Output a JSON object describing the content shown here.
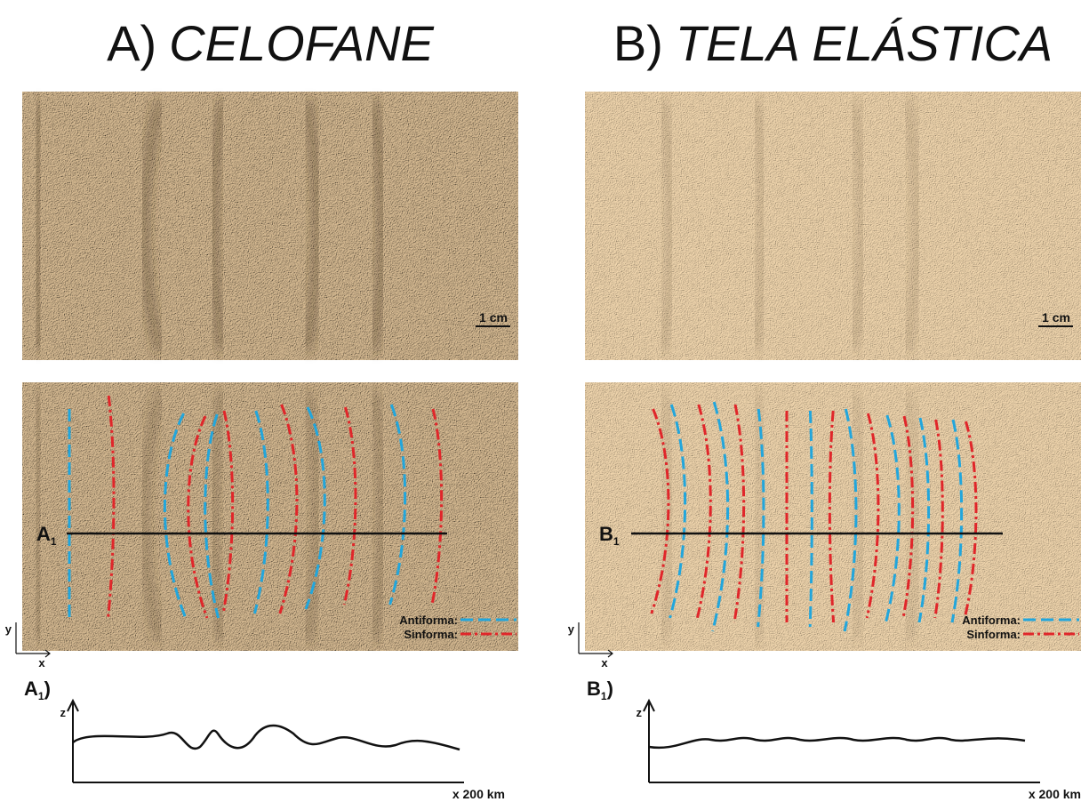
{
  "panels": [
    {
      "title_prefix": "A)",
      "title_name": "CELOFANE",
      "scale": "1 cm",
      "section": {
        "letter": "A",
        "sub": "1"
      },
      "legend": [
        "Antiforma:",
        "Sinforma:"
      ],
      "axes": {
        "y": "y",
        "x": "x"
      },
      "profile": {
        "letter": "A",
        "sub": "1",
        "close": ")",
        "z": "z",
        "x": "x 200 km"
      }
    },
    {
      "title_prefix": "B)",
      "title_name": "TELA ELÁSTICA",
      "scale": "1 cm",
      "section": {
        "letter": "B",
        "sub": "1"
      },
      "legend": [
        "Antiforma:",
        "Sinforma:"
      ],
      "axes": {
        "y": "y",
        "x": "x"
      },
      "profile": {
        "letter": "B",
        "sub": "1",
        "close": ")",
        "z": "z",
        "x": "x 200 km"
      }
    }
  ]
}
